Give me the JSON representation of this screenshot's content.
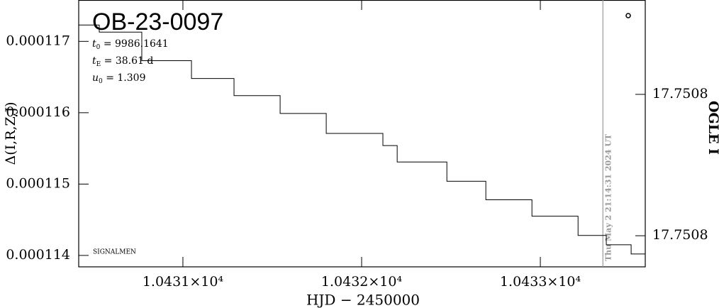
{
  "chart_data": {
    "type": "line",
    "title": "OB-23-0097",
    "xlabel": "HJD − 2450000",
    "ylabel": "Δ(I,R,Z,J)",
    "y2label": "OGLE I",
    "params": [
      {
        "symbol": "t",
        "sub": "0",
        "text": " = 9986.1641"
      },
      {
        "symbol": "t",
        "sub": "E",
        "text": " = 38.61 d"
      },
      {
        "symbol": "u",
        "sub": "0",
        "text": " = 1.309"
      }
    ],
    "footnote": "SIGNALMEN",
    "timestamp": "Thu May  2 21:14:31 2024 UT",
    "timestamp_x": 10433.35,
    "xlim": [
      10430.417,
      10433.587
    ],
    "xticks": [
      {
        "value": 10431,
        "label": "1.0431×10⁴"
      },
      {
        "value": 10432,
        "label": "1.0432×10⁴"
      },
      {
        "value": 10433,
        "label": "1.0433×10⁴"
      }
    ],
    "ylim": [
      0.00011384,
      0.00011758
    ],
    "yticks": [
      0.000114,
      0.000115,
      0.000116,
      0.000117
    ],
    "y2lim": [
      17.7508488,
      17.7507733
    ],
    "y2ticks": [
      {
        "value": 17.7508,
        "label": "17.7508"
      },
      {
        "value": 17.75084,
        "label": "17.7508"
      }
    ],
    "series": [
      {
        "name": "Δ",
        "color": "#000000",
        "x": [
          10430.417,
          10430.532,
          10430.532,
          10430.77,
          10430.77,
          10431.048,
          10431.048,
          10431.286,
          10431.286,
          10431.544,
          10431.544,
          10431.802,
          10431.802,
          10432.119,
          10432.119,
          10432.199,
          10432.199,
          10432.477,
          10432.477,
          10432.695,
          10432.695,
          10432.953,
          10432.953,
          10433.211,
          10433.211,
          10433.369,
          10433.369,
          10433.508,
          10433.508,
          10433.587
        ],
        "values": [
          0.00011723,
          0.00011723,
          0.00011713,
          0.00011713,
          0.00011673,
          0.00011673,
          0.00011648,
          0.00011648,
          0.00011624,
          0.00011624,
          0.00011599,
          0.00011599,
          0.00011571,
          0.00011571,
          0.00011554,
          0.00011554,
          0.00011531,
          0.00011531,
          0.00011504,
          0.00011504,
          0.00011478,
          0.00011478,
          0.00011455,
          0.00011455,
          0.00011428,
          0.00011428,
          0.00011415,
          0.00011415,
          0.00011402,
          0.00011402
        ]
      }
    ]
  }
}
